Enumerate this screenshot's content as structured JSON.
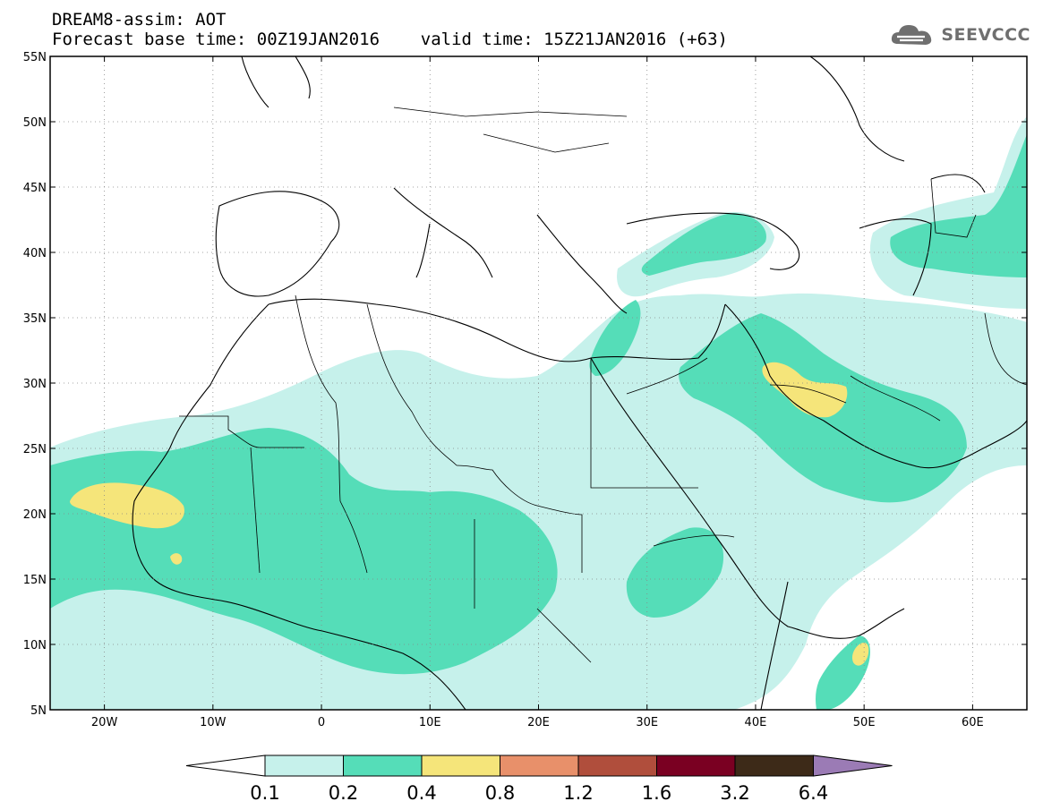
{
  "title": {
    "line1": "DREAM8-assim: AOT",
    "line2": "Forecast base time: 00Z19JAN2016    valid time: 15Z21JAN2016 (+63)"
  },
  "logo": {
    "text": "SEEVCCC",
    "icon": "cloud-icon",
    "color": "#6f6f6f"
  },
  "map": {
    "lon_range": [
      -25,
      65
    ],
    "lat_range": [
      5,
      55
    ],
    "lat_ticks": [
      "5N",
      "10N",
      "15N",
      "20N",
      "25N",
      "30N",
      "35N",
      "40N",
      "45N",
      "50N",
      "55N"
    ],
    "lon_ticks": [
      "20W",
      "10W",
      "0",
      "10E",
      "20E",
      "30E",
      "40E",
      "50E",
      "60E"
    ],
    "gridlines": "dotted"
  },
  "colorbar": {
    "labels": [
      "0.1",
      "0.2",
      "0.4",
      "0.8",
      "1.2",
      "1.6",
      "3.2",
      "6.4"
    ],
    "colors": [
      "#ffffff",
      "#c6f1eb",
      "#55ddb8",
      "#f5e57a",
      "#e8906a",
      "#b04e3c",
      "#7a0022",
      "#3d2a18",
      "#9b7bb5"
    ]
  }
}
